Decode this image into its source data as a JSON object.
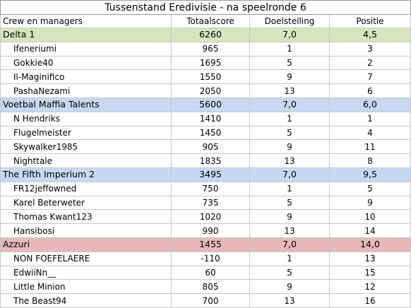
{
  "title": "Tussenstand Eredivisie - na speelronde 6",
  "headers": [
    "Crew en managers",
    "Totaalscore",
    "Doelstelling",
    "Positie"
  ],
  "colors": {
    "green": "#d7e4bc",
    "blue": "#c5d9f1",
    "red": "#e6b9b8"
  },
  "crews": [
    {
      "name": "Delta 1",
      "score": "6260",
      "goal": "7,0",
      "position": "4,5",
      "color": "green",
      "managers": [
        {
          "name": "Ifeneriumi",
          "score": "965",
          "goal": "1",
          "position": "3"
        },
        {
          "name": "Gokkie40",
          "score": "1695",
          "goal": "5",
          "position": "2"
        },
        {
          "name": "Il-Maginifico",
          "score": "1550",
          "goal": "9",
          "position": "7"
        },
        {
          "name": "PashaNezami",
          "score": "2050",
          "goal": "13",
          "position": "6"
        }
      ]
    },
    {
      "name": "Voetbal Maffia Talents",
      "score": "5600",
      "goal": "7,0",
      "position": "6,0",
      "color": "blue",
      "managers": [
        {
          "name": "N Hendriks",
          "score": "1410",
          "goal": "1",
          "position": "1"
        },
        {
          "name": "Flugelmeister",
          "score": "1450",
          "goal": "5",
          "position": "4"
        },
        {
          "name": "Skywalker1985",
          "score": "905",
          "goal": "9",
          "position": "11"
        },
        {
          "name": "Nighttale",
          "score": "1835",
          "goal": "13",
          "position": "8"
        }
      ]
    },
    {
      "name": "The Fifth Imperium 2",
      "score": "3495",
      "goal": "7,0",
      "position": "9,5",
      "color": "blue",
      "managers": [
        {
          "name": "FR12jeffowned",
          "score": "750",
          "goal": "1",
          "position": "5"
        },
        {
          "name": "Karel Beterweter",
          "score": "735",
          "goal": "5",
          "position": "9"
        },
        {
          "name": "Thomas Kwant123",
          "score": "1020",
          "goal": "9",
          "position": "10"
        },
        {
          "name": "Hansibosi",
          "score": "990",
          "goal": "13",
          "position": "14"
        }
      ]
    },
    {
      "name": "Azzuri",
      "score": "1455",
      "goal": "7,0",
      "position": "14,0",
      "color": "red",
      "managers": [
        {
          "name": "NON FOEFELAERE",
          "score": "-110",
          "goal": "1",
          "position": "13"
        },
        {
          "name": "EdwiiNn__",
          "score": "60",
          "goal": "5",
          "position": "15"
        },
        {
          "name": "Little Minion",
          "score": "805",
          "goal": "9",
          "position": "12"
        },
        {
          "name": "The Beast94",
          "score": "700",
          "goal": "13",
          "position": "16"
        }
      ]
    }
  ]
}
